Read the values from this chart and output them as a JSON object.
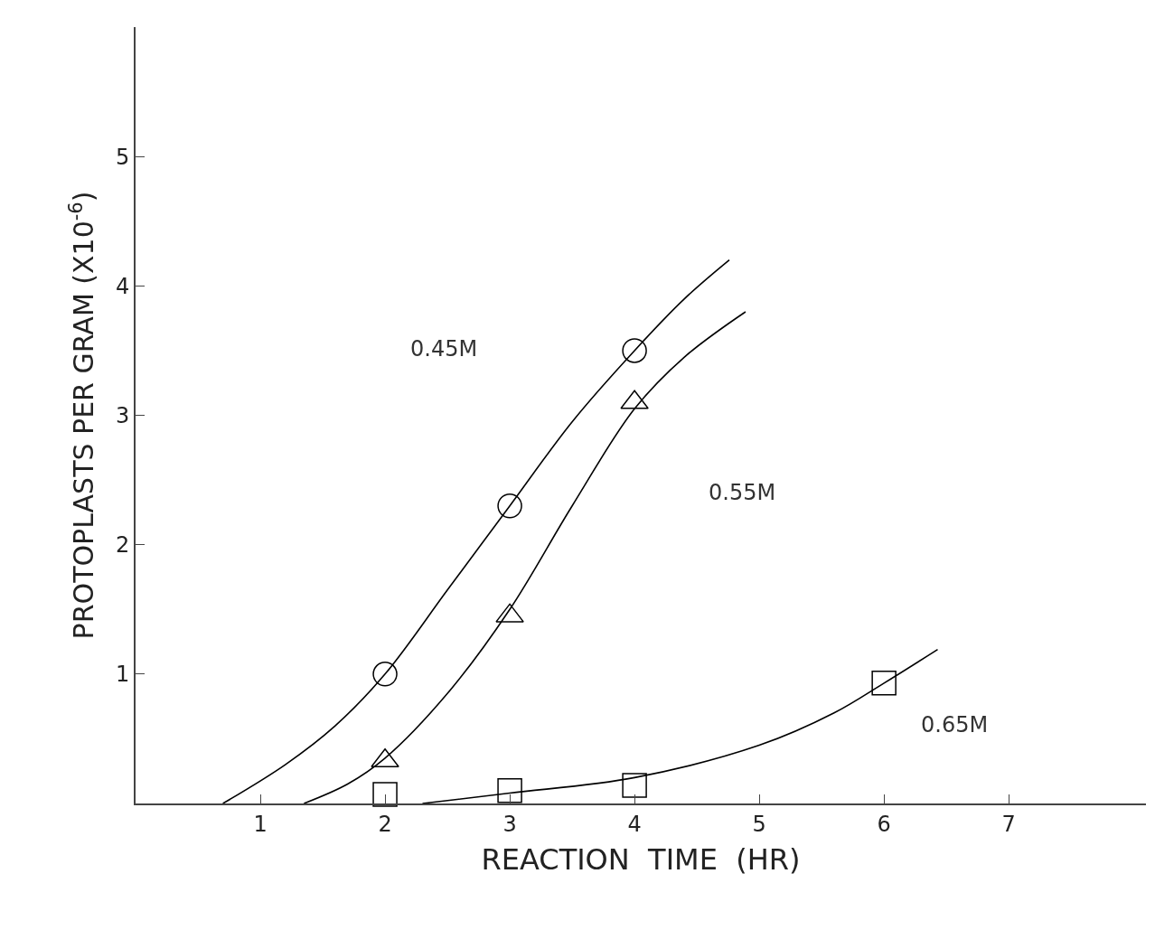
{
  "chart_data": {
    "type": "scatter",
    "xlabel": "REACTION  TIME  (HR)",
    "ylabel": "PROTOPLASTS PER GRAM (X10$^{-6}$)",
    "xlim": [
      0,
      8.1
    ],
    "ylim": [
      0,
      6.0
    ],
    "xticks": [
      1,
      2,
      3,
      4,
      5,
      6,
      7
    ],
    "yticks": [
      1,
      2,
      3,
      4,
      5
    ],
    "series": [
      {
        "type": "line",
        "marker": "none",
        "color": "#000000",
        "x": [
          0.7,
          1.2,
          1.6,
          2,
          2.5,
          3,
          3.5,
          4,
          4.4,
          4.76
        ],
        "values": [
          0,
          0.3,
          0.6,
          1.0,
          1.65,
          2.3,
          2.95,
          3.5,
          3.9,
          4.2
        ]
      },
      {
        "type": "line",
        "marker": "none",
        "color": "#000000",
        "x": [
          1.35,
          1.7,
          2,
          2.5,
          3,
          3.5,
          4,
          4.4,
          4.89
        ],
        "values": [
          0,
          0.15,
          0.35,
          0.85,
          1.5,
          2.3,
          3.05,
          3.45,
          3.8
        ]
      },
      {
        "type": "line",
        "marker": "none",
        "color": "#000000",
        "x": [
          2.3,
          3,
          4,
          5,
          5.6,
          6,
          6.43
        ],
        "values": [
          0,
          0.08,
          0.2,
          0.45,
          0.7,
          0.93,
          1.19
        ]
      },
      {
        "marker": "circle",
        "color": "#000000",
        "x": [
          2,
          3,
          4
        ],
        "values": [
          1.0,
          2.3,
          3.5
        ]
      },
      {
        "marker": "triangle",
        "color": "#000000",
        "x": [
          2,
          3,
          4
        ],
        "values": [
          0.33,
          1.45,
          3.1
        ]
      },
      {
        "marker": "square",
        "color": "#000000",
        "x": [
          2,
          3,
          4,
          6
        ],
        "values": [
          0.07,
          0.1,
          0.14,
          0.93
        ]
      }
    ],
    "annotations": [
      "0.45M",
      "0.55M",
      "0.65M"
    ]
  }
}
